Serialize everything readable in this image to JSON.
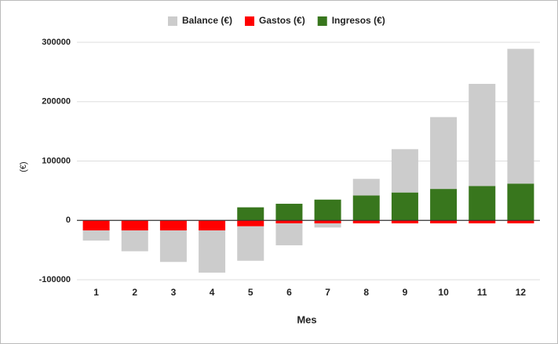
{
  "chart_data": {
    "type": "bar",
    "stacked": true,
    "x_label": "Mes",
    "y_label": "(€)",
    "categories": [
      "1",
      "2",
      "3",
      "4",
      "5",
      "6",
      "7",
      "8",
      "9",
      "10",
      "11",
      "12"
    ],
    "series": [
      {
        "name": "Balance (€)",
        "color": "#cccccc",
        "values": [
          -17000,
          -35000,
          -53000,
          -71000,
          -58000,
          -37000,
          -7000,
          28000,
          73000,
          121000,
          172000,
          227000
        ]
      },
      {
        "name": "Gastos (€)",
        "color": "#ff0000",
        "values": [
          -17000,
          -17000,
          -17000,
          -17000,
          -10000,
          -5000,
          -5000,
          -5000,
          -5000,
          -5000,
          -5000,
          -5000
        ]
      },
      {
        "name": "Ingresos (€)",
        "color": "#38761d",
        "values": [
          0,
          0,
          0,
          0,
          22000,
          28000,
          35000,
          42000,
          47000,
          53000,
          58000,
          62000
        ]
      }
    ],
    "ylim": [
      -100000,
      300000
    ],
    "yticks": [
      300000,
      200000,
      100000,
      0,
      -100000
    ],
    "grid": true,
    "legend": "top"
  }
}
